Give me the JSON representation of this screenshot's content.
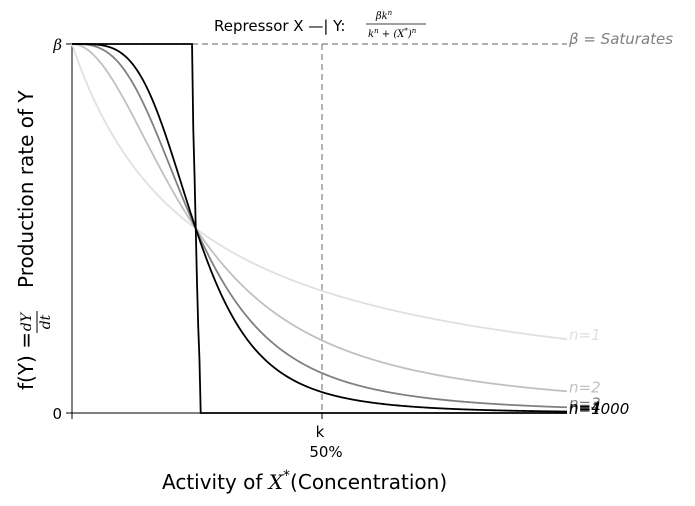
{
  "chart_data": {
    "type": "line",
    "title": "Repressor X —| Y:",
    "title_formula": {
      "numerator": "βk",
      "numerator_sup": "n",
      "denominator": "k",
      "denominator_sup": "n",
      "denominator_mid": " + (X",
      "denominator_star": "*",
      "denominator_close": ")",
      "denominator_close_sup": "n"
    },
    "xlabel_prefix": "Activity of ",
    "xlabel_var": "X",
    "xlabel_sup": "*",
    "xlabel_paren": "(Concentration)",
    "ylabel_prefix": "f(Y) = ",
    "ylabel_num": "dY",
    "ylabel_den": "dt",
    "ylabel_suffix": "Production rate of Y",
    "x_ticks": {
      "k": "k",
      "pct": "50%"
    },
    "y_ticks": {
      "top": "β",
      "bottom": "0"
    },
    "saturation_label": "β = Saturates",
    "k_ratio": 0.5,
    "x_range_ratio": [
      0,
      2
    ],
    "y_range": [
      0,
      1
    ],
    "series": [
      {
        "name": "n=1",
        "n": 1,
        "color": "#e0e0e0"
      },
      {
        "name": "n=2",
        "n": 2,
        "color": "#c0c0c0"
      },
      {
        "name": "n=3",
        "n": 3,
        "color": "#808080"
      },
      {
        "name": "n=4",
        "n": 4,
        "color": "#000000"
      },
      {
        "name": "n=1000",
        "n": 1000,
        "color": "#000000"
      }
    ],
    "dashed_color": "#808080",
    "grid": false
  }
}
